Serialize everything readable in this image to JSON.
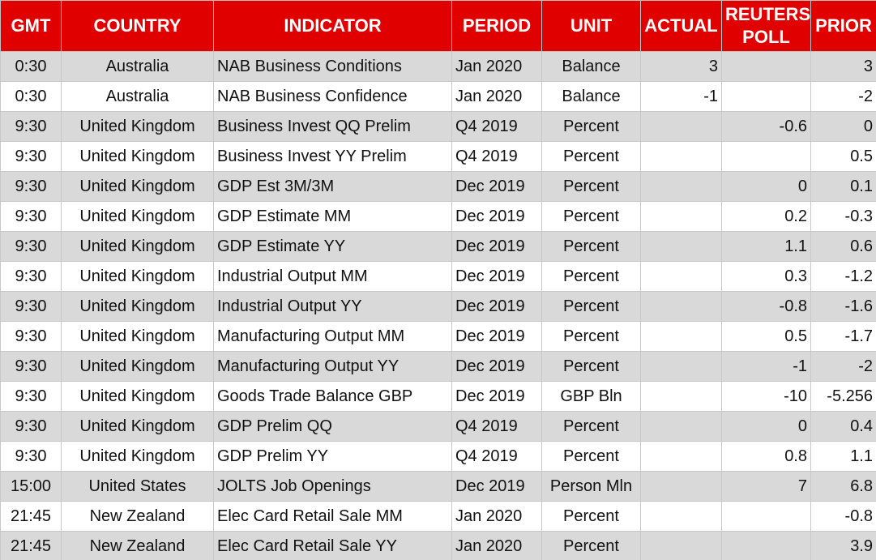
{
  "table": {
    "columns": [
      "GMT",
      "COUNTRY",
      "INDICATOR",
      "PERIOD",
      "UNIT",
      "ACTUAL",
      "REUTERS POLL",
      "PRIOR"
    ],
    "rows": [
      [
        "0:30",
        "Australia",
        "NAB Business Conditions",
        "Jan 2020",
        "Balance",
        "3",
        null,
        "3"
      ],
      [
        "0:30",
        "Australia",
        "NAB Business Confidence",
        "Jan 2020",
        "Balance",
        "-1",
        null,
        "-2"
      ],
      [
        "9:30",
        "United Kingdom",
        "Business Invest QQ Prelim",
        "Q4 2019",
        "Percent",
        null,
        "-0.6",
        "0"
      ],
      [
        "9:30",
        "United Kingdom",
        "Business Invest YY Prelim",
        "Q4 2019",
        "Percent",
        null,
        null,
        "0.5"
      ],
      [
        "9:30",
        "United Kingdom",
        "GDP Est 3M/3M",
        "Dec 2019",
        "Percent",
        null,
        "0",
        "0.1"
      ],
      [
        "9:30",
        "United Kingdom",
        "GDP Estimate MM",
        "Dec 2019",
        "Percent",
        null,
        "0.2",
        "-0.3"
      ],
      [
        "9:30",
        "United Kingdom",
        "GDP Estimate YY",
        "Dec 2019",
        "Percent",
        null,
        "1.1",
        "0.6"
      ],
      [
        "9:30",
        "United Kingdom",
        "Industrial Output MM",
        "Dec 2019",
        "Percent",
        null,
        "0.3",
        "-1.2"
      ],
      [
        "9:30",
        "United Kingdom",
        "Industrial Output YY",
        "Dec 2019",
        "Percent",
        null,
        "-0.8",
        "-1.6"
      ],
      [
        "9:30",
        "United Kingdom",
        "Manufacturing Output MM",
        "Dec 2019",
        "Percent",
        null,
        "0.5",
        "-1.7"
      ],
      [
        "9:30",
        "United Kingdom",
        "Manufacturing Output YY",
        "Dec 2019",
        "Percent",
        null,
        "-1",
        "-2"
      ],
      [
        "9:30",
        "United Kingdom",
        "Goods Trade Balance GBP",
        "Dec 2019",
        "GBP Bln",
        null,
        "-10",
        "-5.256"
      ],
      [
        "9:30",
        "United Kingdom",
        "GDP Prelim QQ",
        "Q4 2019",
        "Percent",
        null,
        "0",
        "0.4"
      ],
      [
        "9:30",
        "United Kingdom",
        "GDP Prelim YY",
        "Q4 2019",
        "Percent",
        null,
        "0.8",
        "1.1"
      ],
      [
        "15:00",
        "United States",
        "JOLTS Job Openings",
        "Dec 2019",
        "Person Mln",
        null,
        "7",
        "6.8"
      ],
      [
        "21:45",
        "New Zealand",
        "Elec Card Retail Sale MM",
        "Jan 2020",
        "Percent",
        null,
        null,
        "-0.8"
      ],
      [
        "21:45",
        "New Zealand",
        "Elec Card Retail Sale YY",
        "Jan 2020",
        "Percent",
        null,
        null,
        "3.9"
      ]
    ]
  }
}
